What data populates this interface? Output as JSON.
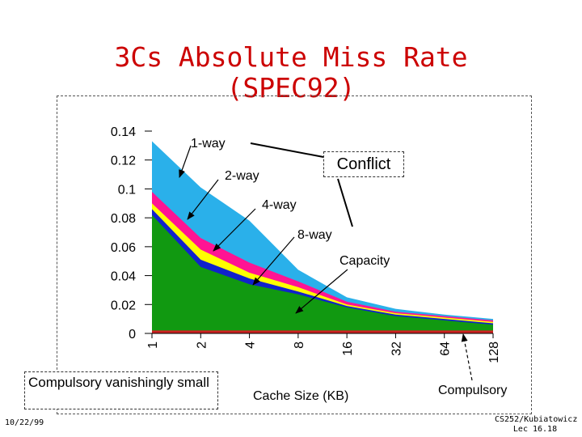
{
  "slide": {
    "title_line1": "3Cs Absolute Miss Rate",
    "title_line2": "(SPEC92)",
    "footer_date": "10/22/99",
    "footer_course": "CS252/Kubiatowicz",
    "footer_lecture": "Lec 16.18",
    "note_compulsory": "Compulsory vanishingly small"
  },
  "chart_data": {
    "type": "area",
    "xlabel": "Cache Size (KB)",
    "x": [
      "1",
      "2",
      "4",
      "8",
      "16",
      "32",
      "64",
      "128"
    ],
    "ylim": [
      0,
      0.14
    ],
    "yticks": [
      "0.14",
      "0.12",
      "0.1",
      "0.08",
      "0.06",
      "0.04",
      "0.02",
      "0"
    ],
    "stacked_layers": [
      {
        "name": "Compulsory",
        "color": "#cc2222",
        "values": [
          0.002,
          0.002,
          0.002,
          0.002,
          0.002,
          0.002,
          0.002,
          0.002
        ]
      },
      {
        "name": "Capacity",
        "color": "#119911",
        "values": [
          0.082,
          0.046,
          0.034,
          0.027,
          0.018,
          0.012,
          0.009,
          0.006
        ]
      },
      {
        "name": "8-way",
        "color": "#1122cc",
        "values": [
          0.086,
          0.051,
          0.038,
          0.029,
          0.019,
          0.013,
          0.01,
          0.007
        ]
      },
      {
        "name": "4-way",
        "color": "#ffff00",
        "values": [
          0.09,
          0.058,
          0.042,
          0.032,
          0.02,
          0.014,
          0.011,
          0.008
        ]
      },
      {
        "name": "2-way",
        "color": "#ff1493",
        "values": [
          0.098,
          0.066,
          0.049,
          0.036,
          0.022,
          0.015,
          0.012,
          0.009
        ]
      },
      {
        "name": "1-way",
        "color": "#2ab0ea",
        "values": [
          0.133,
          0.101,
          0.078,
          0.044,
          0.025,
          0.017,
          0.013,
          0.01
        ]
      }
    ],
    "annotations": {
      "one_way": "1-way",
      "two_way": "2-way",
      "four_way": "4-way",
      "eight_way": "8-way",
      "capacity": "Capacity",
      "conflict": "Conflict",
      "compulsory": "Compulsory"
    },
    "grid": false,
    "legend": "none"
  }
}
